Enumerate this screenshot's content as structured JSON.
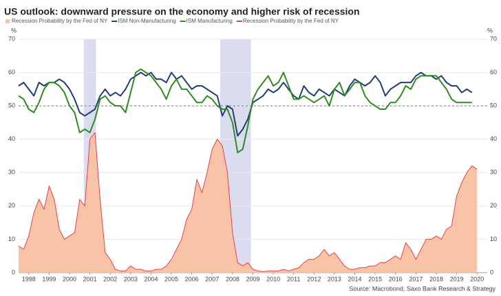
{
  "chart_data": {
    "type": "line",
    "title": "US outlook: downward pressure on the economy and higher risk of recession",
    "source": "Source: Macrobond, Saxo Bank Research & Strategy",
    "y_unit": "%",
    "xlim": [
      1998,
      2021
    ],
    "xticks": [
      {
        "value": 1998.5,
        "label": "1998"
      },
      {
        "value": 1999.5,
        "label": "1999"
      },
      {
        "value": 2000.5,
        "label": "2000"
      },
      {
        "value": 2001.5,
        "label": "2001"
      },
      {
        "value": 2002.5,
        "label": "2002"
      },
      {
        "value": 2003.5,
        "label": "2003"
      },
      {
        "value": 2004.5,
        "label": "2004"
      },
      {
        "value": 2005.5,
        "label": "2005"
      },
      {
        "value": 2006.5,
        "label": "2006"
      },
      {
        "value": 2007.5,
        "label": "2007"
      },
      {
        "value": 2008.5,
        "label": "2008"
      },
      {
        "value": 2009.5,
        "label": "2009"
      },
      {
        "value": 2010.5,
        "label": "2010"
      },
      {
        "value": 2011.5,
        "label": "2011"
      },
      {
        "value": 2012.5,
        "label": "2012"
      },
      {
        "value": 2013.5,
        "label": "2013"
      },
      {
        "value": 2014.5,
        "label": "2014"
      },
      {
        "value": 2015.5,
        "label": "2015"
      },
      {
        "value": 2016.5,
        "label": "2016"
      },
      {
        "value": 2017.5,
        "label": "2017"
      },
      {
        "value": 2018.5,
        "label": "2018"
      },
      {
        "value": 2019.5,
        "label": "2019"
      },
      {
        "value": 2020.5,
        "label": "2020"
      }
    ],
    "ylim": [
      0,
      70
    ],
    "yticks": [
      0,
      10,
      20,
      30,
      40,
      50,
      60,
      70
    ],
    "grid": true,
    "reference_line": 50,
    "recessions": [
      [
        2001.2,
        2001.8
      ],
      [
        2007.9,
        2009.4
      ]
    ],
    "recession_color": "#dcdcf0",
    "x": [
      1998,
      1998.25,
      1998.5,
      1998.75,
      1999,
      1999.25,
      1999.5,
      1999.75,
      2000,
      2000.25,
      2000.5,
      2000.75,
      2001,
      2001.25,
      2001.5,
      2001.75,
      2002,
      2002.25,
      2002.5,
      2002.75,
      2003,
      2003.25,
      2003.5,
      2003.75,
      2004,
      2004.25,
      2004.5,
      2004.75,
      2005,
      2005.25,
      2005.5,
      2005.75,
      2006,
      2006.25,
      2006.5,
      2006.75,
      2007,
      2007.25,
      2007.5,
      2007.75,
      2008,
      2008.25,
      2008.5,
      2008.75,
      2009,
      2009.25,
      2009.5,
      2009.75,
      2010,
      2010.25,
      2010.5,
      2010.75,
      2011,
      2011.25,
      2011.5,
      2011.75,
      2012,
      2012.25,
      2012.5,
      2012.75,
      2013,
      2013.25,
      2013.5,
      2013.75,
      2014,
      2014.25,
      2014.5,
      2014.75,
      2015,
      2015.25,
      2015.5,
      2015.75,
      2016,
      2016.25,
      2016.5,
      2016.75,
      2017,
      2017.25,
      2017.5,
      2017.75,
      2018,
      2018.25,
      2018.5,
      2018.75,
      2019,
      2019.25,
      2019.5,
      2019.75,
      2020,
      2020.25,
      2020.5
    ],
    "series": [
      {
        "name": "Recession Probability by the Fed of NY",
        "style": "area",
        "color": "#e2404f",
        "fill_color": "#f8c3a6",
        "values": [
          8,
          7,
          11,
          18,
          22,
          19,
          26,
          22,
          13,
          10,
          11,
          12,
          22,
          20,
          40,
          42,
          22,
          6,
          4,
          1,
          0.5,
          0.5,
          2,
          1,
          1,
          0.5,
          0.5,
          1,
          1,
          2,
          4,
          7,
          10,
          16,
          19,
          28,
          24,
          30,
          37,
          40,
          38,
          30,
          12,
          3,
          2,
          3,
          1,
          0.5,
          0.3,
          0.5,
          0.5,
          0.5,
          1,
          0.5,
          1,
          1.5,
          3,
          4,
          4,
          5,
          7,
          5,
          6,
          4,
          2,
          1,
          1,
          1.5,
          1.5,
          2,
          2,
          3,
          3,
          4,
          5,
          4,
          9,
          7,
          4,
          7,
          10,
          10,
          11,
          10,
          13,
          14,
          23,
          27,
          30,
          32,
          31
        ]
      },
      {
        "name": "ISM Non-Manufacturing",
        "style": "line",
        "color": "#1f3c78",
        "values": [
          56,
          57,
          55,
          53,
          57,
          56,
          57,
          57,
          58,
          57,
          55,
          52,
          48,
          47,
          48,
          49,
          53,
          55,
          53,
          54,
          53,
          55,
          58,
          59,
          60,
          59,
          60,
          58,
          58,
          57,
          60,
          58,
          59,
          57,
          55,
          56,
          56,
          55,
          54,
          53,
          47,
          50,
          49,
          41,
          43,
          46,
          51,
          52,
          53,
          55,
          54,
          55,
          57,
          55,
          53,
          52,
          56,
          54,
          53,
          55,
          54,
          53,
          55,
          54,
          53,
          56,
          58,
          57,
          56,
          57,
          59,
          57,
          53,
          55,
          56,
          57,
          57,
          57,
          59,
          60,
          59,
          59,
          58,
          59,
          57,
          56,
          56,
          54,
          55,
          54,
          null
        ]
      },
      {
        "name": "ISM Manufacturing",
        "style": "line",
        "color": "#2e8b1e",
        "values": [
          53,
          52,
          49,
          48,
          51,
          55,
          57,
          57,
          56,
          54,
          50,
          48,
          42,
          43,
          42,
          46,
          52,
          53,
          51,
          50,
          50,
          48,
          54,
          60,
          61,
          60,
          59,
          57,
          55,
          52,
          56,
          58,
          55,
          55,
          53,
          51,
          51,
          53,
          52,
          50,
          49,
          49,
          45,
          36,
          37,
          44,
          52,
          55,
          57,
          59,
          56,
          57,
          60,
          56,
          52,
          52,
          53,
          52,
          51,
          52,
          53,
          50,
          55,
          57,
          53,
          55,
          57,
          57,
          53,
          51,
          50,
          49,
          49,
          51,
          51,
          53,
          56,
          55,
          58,
          59,
          59,
          59,
          59,
          57,
          55,
          52,
          51,
          51,
          51,
          51,
          null
        ]
      }
    ]
  }
}
